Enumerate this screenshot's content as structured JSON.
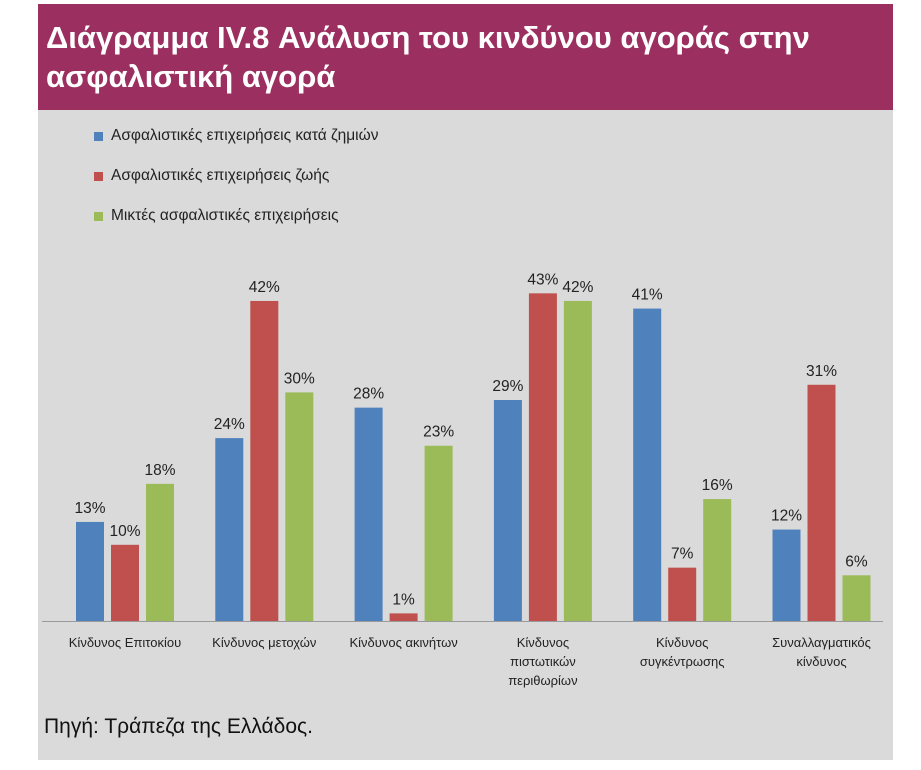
{
  "title": "Διάγραμμα IV.8 Ανάλυση του κινδύνου αγοράς στην ασφαλιστική αγορά",
  "source": "Πηγή: Τράπεζα της Ελλάδος.",
  "chart_data": {
    "type": "bar",
    "categories": [
      [
        "Κίνδυνος Επιτοκίου"
      ],
      [
        "Κίνδυνος μετοχών"
      ],
      [
        "Κίνδυνος ακινήτων"
      ],
      [
        "Κίνδυνος",
        "πιστωτικών",
        "περιθωρίων"
      ],
      [
        "Κίνδυνος",
        "συγκέντρωσης"
      ],
      [
        "Συναλλαγματικός",
        "κίνδυνος"
      ]
    ],
    "series": [
      {
        "name": "Ασφαλιστικές επιχειρήσεις κατά ζημιών",
        "color": "#4f81bd",
        "values": [
          13,
          24,
          28,
          29,
          41,
          12
        ]
      },
      {
        "name": "Ασφαλιστικές επιχειρήσεις ζωής",
        "color": "#c0504d",
        "values": [
          10,
          42,
          1,
          43,
          7,
          31
        ]
      },
      {
        "name": "Μικτές ασφαλιστικές επιχειρήσεις",
        "color": "#9bbb59",
        "values": [
          18,
          30,
          23,
          42,
          16,
          6
        ]
      }
    ],
    "value_suffix": "%",
    "ylim": [
      0,
      45
    ],
    "grid": false,
    "legend_position": "top-left"
  }
}
